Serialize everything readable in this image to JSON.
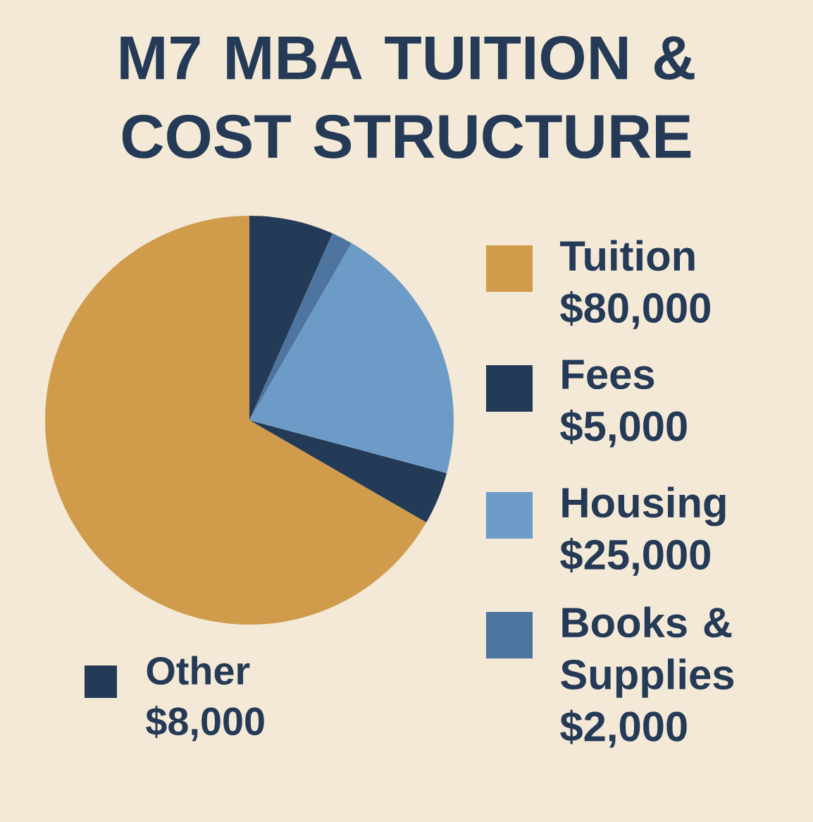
{
  "chart_data": {
    "type": "pie",
    "title": "M7 MBA TUITION & COST STRUCTURE",
    "categories": [
      "Tuition",
      "Fees",
      "Housing",
      "Books & Supplies",
      "Other"
    ],
    "values": [
      80000,
      5000,
      25000,
      2000,
      8000
    ],
    "colors": [
      "#d19b4c",
      "#243b57",
      "#6b9bc6",
      "#4d75a0",
      "#243b57"
    ],
    "value_labels": [
      "$80,000",
      "$5,000",
      "$25,000",
      "$2,000",
      "$8,000"
    ],
    "legend": "right"
  }
}
